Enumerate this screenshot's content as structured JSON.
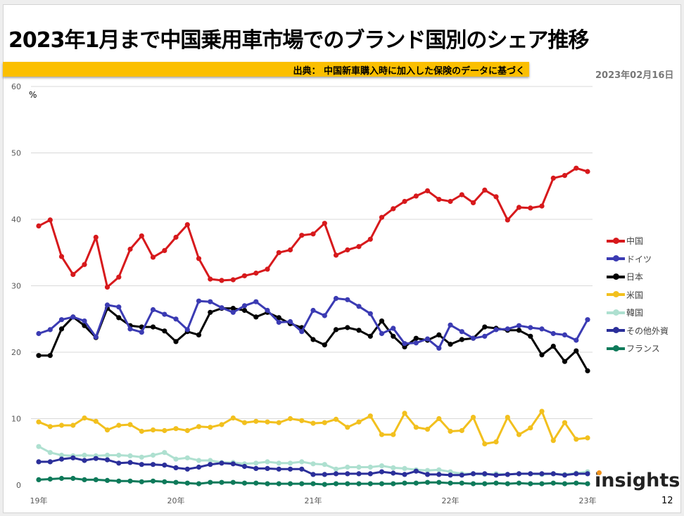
{
  "header": {
    "title": "2023年1月まで中国乗用車市場でのブランド国別のシェア推移",
    "source": "出典： 中国新車購入時に加入した保険のデータに基づく",
    "date": "2023年02月16日"
  },
  "footer": {
    "page_number": "12",
    "logo_text": "insights"
  },
  "colors": {
    "banner": "#fbbf00",
    "china": "#d7191c",
    "germany": "#3b3bb3",
    "japan": "#000000",
    "usa": "#f2c01e",
    "korea": "#aee0d0",
    "others": "#2b2f9a",
    "france": "#0e7a5a"
  },
  "chart_data": {
    "type": "line",
    "title": "2023年1月まで中国乗用車市場でのブランド国別のシェア推移",
    "xlabel": "",
    "ylabel": "%",
    "ylim": [
      0,
      60
    ],
    "yticks": [
      0,
      10,
      20,
      30,
      40,
      50,
      60
    ],
    "grid": true,
    "legend_position": "right",
    "x_tick_labels": [
      "19年",
      "20年",
      "21年",
      "22年",
      "23年"
    ],
    "x_tick_indices": [
      0,
      12,
      24,
      36,
      48
    ],
    "x": [
      "2019-01",
      "2019-02",
      "2019-03",
      "2019-04",
      "2019-05",
      "2019-06",
      "2019-07",
      "2019-08",
      "2019-09",
      "2019-10",
      "2019-11",
      "2019-12",
      "2020-01",
      "2020-02",
      "2020-03",
      "2020-04",
      "2020-05",
      "2020-06",
      "2020-07",
      "2020-08",
      "2020-09",
      "2020-10",
      "2020-11",
      "2020-12",
      "2021-01",
      "2021-02",
      "2021-03",
      "2021-04",
      "2021-05",
      "2021-06",
      "2021-07",
      "2021-08",
      "2021-09",
      "2021-10",
      "2021-11",
      "2021-12",
      "2022-01",
      "2022-02",
      "2022-03",
      "2022-04",
      "2022-05",
      "2022-06",
      "2022-07",
      "2022-08",
      "2022-09",
      "2022-10",
      "2022-11",
      "2022-12",
      "2023-01"
    ],
    "series": [
      {
        "name": "中国",
        "key": "china",
        "values": [
          39.0,
          39.9,
          34.4,
          31.7,
          33.2,
          37.3,
          29.8,
          31.3,
          35.5,
          37.5,
          34.3,
          35.3,
          37.3,
          39.2,
          34.1,
          31.0,
          30.8,
          30.9,
          31.5,
          31.9,
          32.5,
          35.0,
          35.4,
          37.6,
          37.8,
          39.4,
          34.6,
          35.4,
          35.9,
          37.0,
          40.3,
          41.6,
          42.7,
          43.5,
          44.3,
          43.0,
          42.7,
          43.7,
          42.5,
          44.4,
          43.4,
          39.9,
          41.8,
          41.7,
          42.0,
          46.2,
          46.6,
          47.7,
          47.2
        ]
      },
      {
        "name": "ドイツ",
        "key": "germany",
        "values": [
          22.8,
          23.4,
          24.9,
          25.3,
          24.7,
          22.3,
          27.1,
          26.8,
          23.5,
          23.0,
          26.4,
          25.7,
          25.0,
          23.4,
          27.7,
          27.6,
          26.7,
          26.0,
          27.0,
          27.6,
          26.3,
          24.5,
          24.6,
          23.1,
          26.3,
          25.5,
          28.1,
          27.9,
          26.9,
          25.8,
          22.8,
          23.6,
          21.3,
          21.4,
          22.0,
          20.6,
          24.1,
          23.1,
          22.1,
          22.4,
          23.4,
          23.5,
          24.0,
          23.7,
          23.5,
          22.8,
          22.6,
          21.8,
          24.9
        ]
      },
      {
        "name": "日本",
        "key": "japan",
        "values": [
          19.5,
          19.5,
          23.5,
          25.3,
          24.0,
          22.2,
          26.6,
          25.2,
          24.0,
          23.8,
          23.8,
          23.2,
          21.6,
          23.1,
          22.6,
          26.0,
          26.6,
          26.6,
          26.3,
          25.3,
          26.0,
          25.2,
          24.3,
          23.7,
          21.9,
          21.1,
          23.4,
          23.7,
          23.3,
          22.4,
          24.7,
          22.4,
          20.8,
          22.1,
          21.8,
          22.6,
          21.2,
          21.9,
          22.1,
          23.8,
          23.6,
          23.3,
          23.3,
          22.4,
          19.6,
          20.9,
          18.6,
          20.2,
          17.2
        ]
      },
      {
        "name": "米国",
        "key": "usa",
        "values": [
          9.5,
          8.8,
          9.0,
          9.0,
          10.1,
          9.6,
          8.3,
          9.0,
          9.1,
          8.1,
          8.3,
          8.2,
          8.5,
          8.2,
          8.8,
          8.7,
          9.1,
          10.1,
          9.4,
          9.6,
          9.5,
          9.4,
          10.0,
          9.7,
          9.3,
          9.4,
          9.9,
          8.7,
          9.5,
          10.4,
          7.6,
          7.6,
          10.8,
          8.7,
          8.4,
          10.0,
          8.1,
          8.2,
          10.2,
          6.2,
          6.5,
          10.2,
          7.6,
          8.6,
          11.1,
          6.7,
          9.4,
          6.9,
          7.1
        ]
      },
      {
        "name": "韓国",
        "key": "korea",
        "values": [
          5.8,
          4.9,
          4.5,
          4.4,
          4.5,
          4.4,
          4.5,
          4.5,
          4.4,
          4.2,
          4.5,
          4.9,
          3.9,
          4.1,
          3.7,
          3.7,
          3.4,
          3.4,
          3.2,
          3.3,
          3.5,
          3.3,
          3.3,
          3.5,
          3.2,
          3.1,
          2.4,
          2.7,
          2.7,
          2.7,
          2.9,
          2.6,
          2.5,
          2.3,
          2.2,
          2.3,
          2.0,
          1.7,
          1.7,
          1.6,
          1.7,
          1.6,
          1.7,
          1.7,
          1.6,
          1.7,
          1.6,
          1.8,
          2.0
        ]
      },
      {
        "name": "その他外資",
        "key": "others",
        "values": [
          3.5,
          3.5,
          3.9,
          4.1,
          3.7,
          4.0,
          3.8,
          3.3,
          3.4,
          3.1,
          3.1,
          3.0,
          2.6,
          2.4,
          2.7,
          3.1,
          3.3,
          3.2,
          2.8,
          2.5,
          2.5,
          2.4,
          2.4,
          2.4,
          1.6,
          1.6,
          1.7,
          1.7,
          1.7,
          1.7,
          2.0,
          1.8,
          1.6,
          2.1,
          1.6,
          1.6,
          1.5,
          1.5,
          1.7,
          1.7,
          1.5,
          1.6,
          1.7,
          1.7,
          1.7,
          1.7,
          1.5,
          1.7,
          1.7
        ]
      },
      {
        "name": "フランス",
        "key": "france",
        "values": [
          0.8,
          0.9,
          1.0,
          1.0,
          0.8,
          0.8,
          0.7,
          0.6,
          0.6,
          0.5,
          0.6,
          0.5,
          0.4,
          0.3,
          0.2,
          0.4,
          0.4,
          0.4,
          0.3,
          0.3,
          0.2,
          0.2,
          0.2,
          0.2,
          0.2,
          0.1,
          0.2,
          0.2,
          0.2,
          0.2,
          0.2,
          0.2,
          0.3,
          0.3,
          0.4,
          0.4,
          0.3,
          0.3,
          0.2,
          0.2,
          0.3,
          0.2,
          0.3,
          0.2,
          0.2,
          0.3,
          0.2,
          0.3,
          0.2
        ]
      }
    ]
  }
}
